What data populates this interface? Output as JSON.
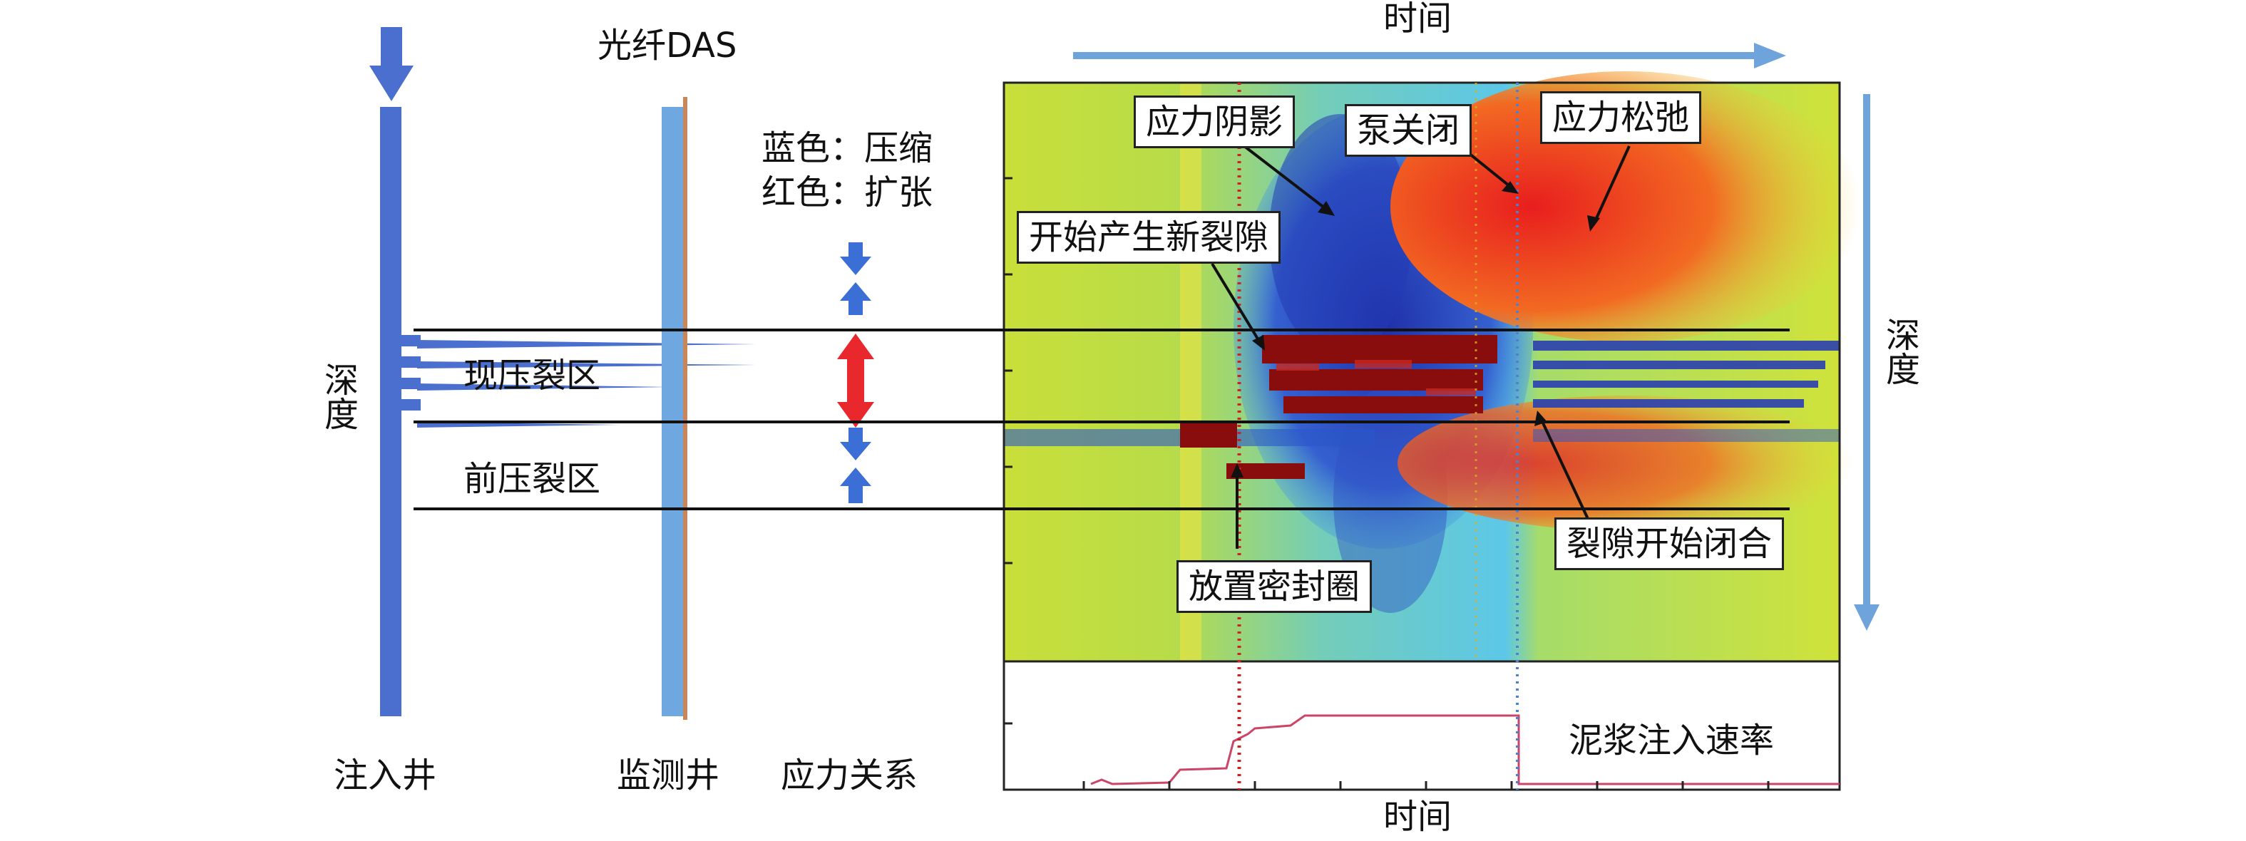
{
  "labels": {
    "das": "光纤DAS",
    "color_key_blue": "蓝色：压缩",
    "color_key_red": "红色：扩张",
    "current_zone": "现压裂区",
    "previous_zone": "前压裂区",
    "depth_left": "深度",
    "depth_right": "深度",
    "injection_well": "注入井",
    "monitoring_well": "监测井",
    "stress_relation": "应力关系",
    "time_top": "时间",
    "time_bottom": "时间",
    "slurry_rate": "泥浆注入速率"
  },
  "callouts": {
    "stress_shadow": "应力阴影",
    "pump_off": "泵关闭",
    "stress_relaxation": "应力松弛",
    "new_fracture": "开始产生新裂隙",
    "fracture_closing": "裂隙开始闭合",
    "packer_set": "放置密封圈"
  },
  "colors": {
    "well_blue": "#4a6fcf",
    "monitor_well": "#6fa8e0",
    "casing": "#c8875a",
    "arrow_light_blue": "#6fa3dc",
    "compression_blue": "#3b6fd6",
    "expansion_red": "#e8282c",
    "field_yellow_green": "#c9df3a",
    "cyan": "#5cc7e8",
    "deep_blue": "#1f2fa8",
    "dark_red": "#8a0d0d",
    "rate_line": "#cc4466"
  }
}
